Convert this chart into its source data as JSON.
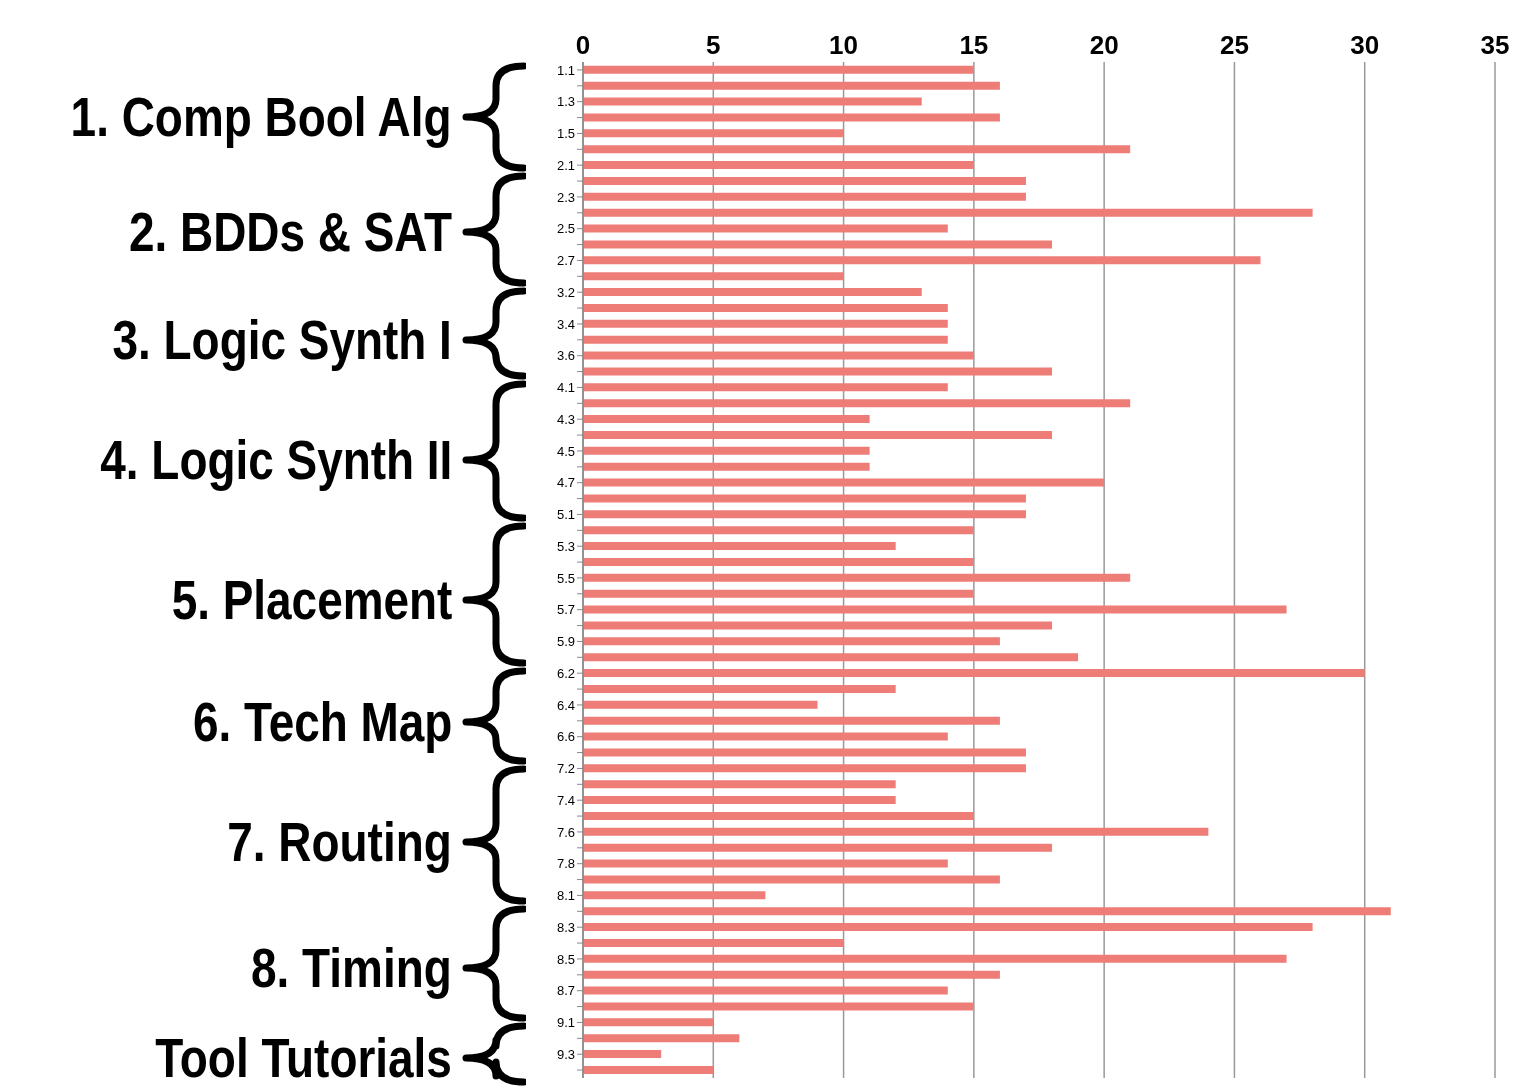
{
  "chart_data": {
    "type": "bar",
    "orientation": "horizontal",
    "categories": [
      "1.1",
      null,
      "1.3",
      null,
      "1.5",
      null,
      "2.1",
      null,
      "2.3",
      null,
      "2.5",
      null,
      "2.7",
      null,
      "3.2",
      null,
      "3.4",
      null,
      "3.6",
      null,
      "4.1",
      null,
      "4.3",
      null,
      "4.5",
      null,
      "4.7",
      null,
      "5.1",
      null,
      "5.3",
      null,
      "5.5",
      null,
      "5.7",
      null,
      "5.9",
      null,
      "6.2",
      null,
      "6.4",
      null,
      "6.6",
      null,
      "7.2",
      null,
      "7.4",
      null,
      "7.6",
      null,
      "7.8",
      null,
      "8.1",
      null,
      "8.3",
      null,
      "8.5",
      null,
      "8.7",
      null,
      "9.1",
      null,
      "9.3",
      null
    ],
    "values": [
      15,
      16,
      13,
      16,
      10,
      21,
      15,
      17,
      17,
      28,
      14,
      18,
      26,
      10,
      13,
      14,
      14,
      14,
      15,
      18,
      14,
      21,
      11,
      18,
      11,
      11,
      20,
      17,
      17,
      15,
      12,
      15,
      21,
      15,
      27,
      18,
      16,
      19,
      30,
      12,
      9,
      16,
      14,
      17,
      17,
      12,
      12,
      15,
      24,
      18,
      14,
      16,
      7,
      31,
      28,
      10,
      27,
      16,
      14,
      15,
      5,
      6,
      3,
      5
    ],
    "color": "#ee7d78",
    "xlim": [
      0,
      35
    ],
    "xticks": [
      0,
      5,
      10,
      15,
      20,
      25,
      30,
      35
    ],
    "grid": "x",
    "annotations": [
      "1. Comp Bool Alg",
      "2. BDDs & SAT",
      "3. Logic Synth I",
      "4. Logic Synth II",
      "5. Placement",
      "6. Tech Map",
      "7. Routing",
      "8. Timing",
      "Tool Tutorials"
    ]
  }
}
